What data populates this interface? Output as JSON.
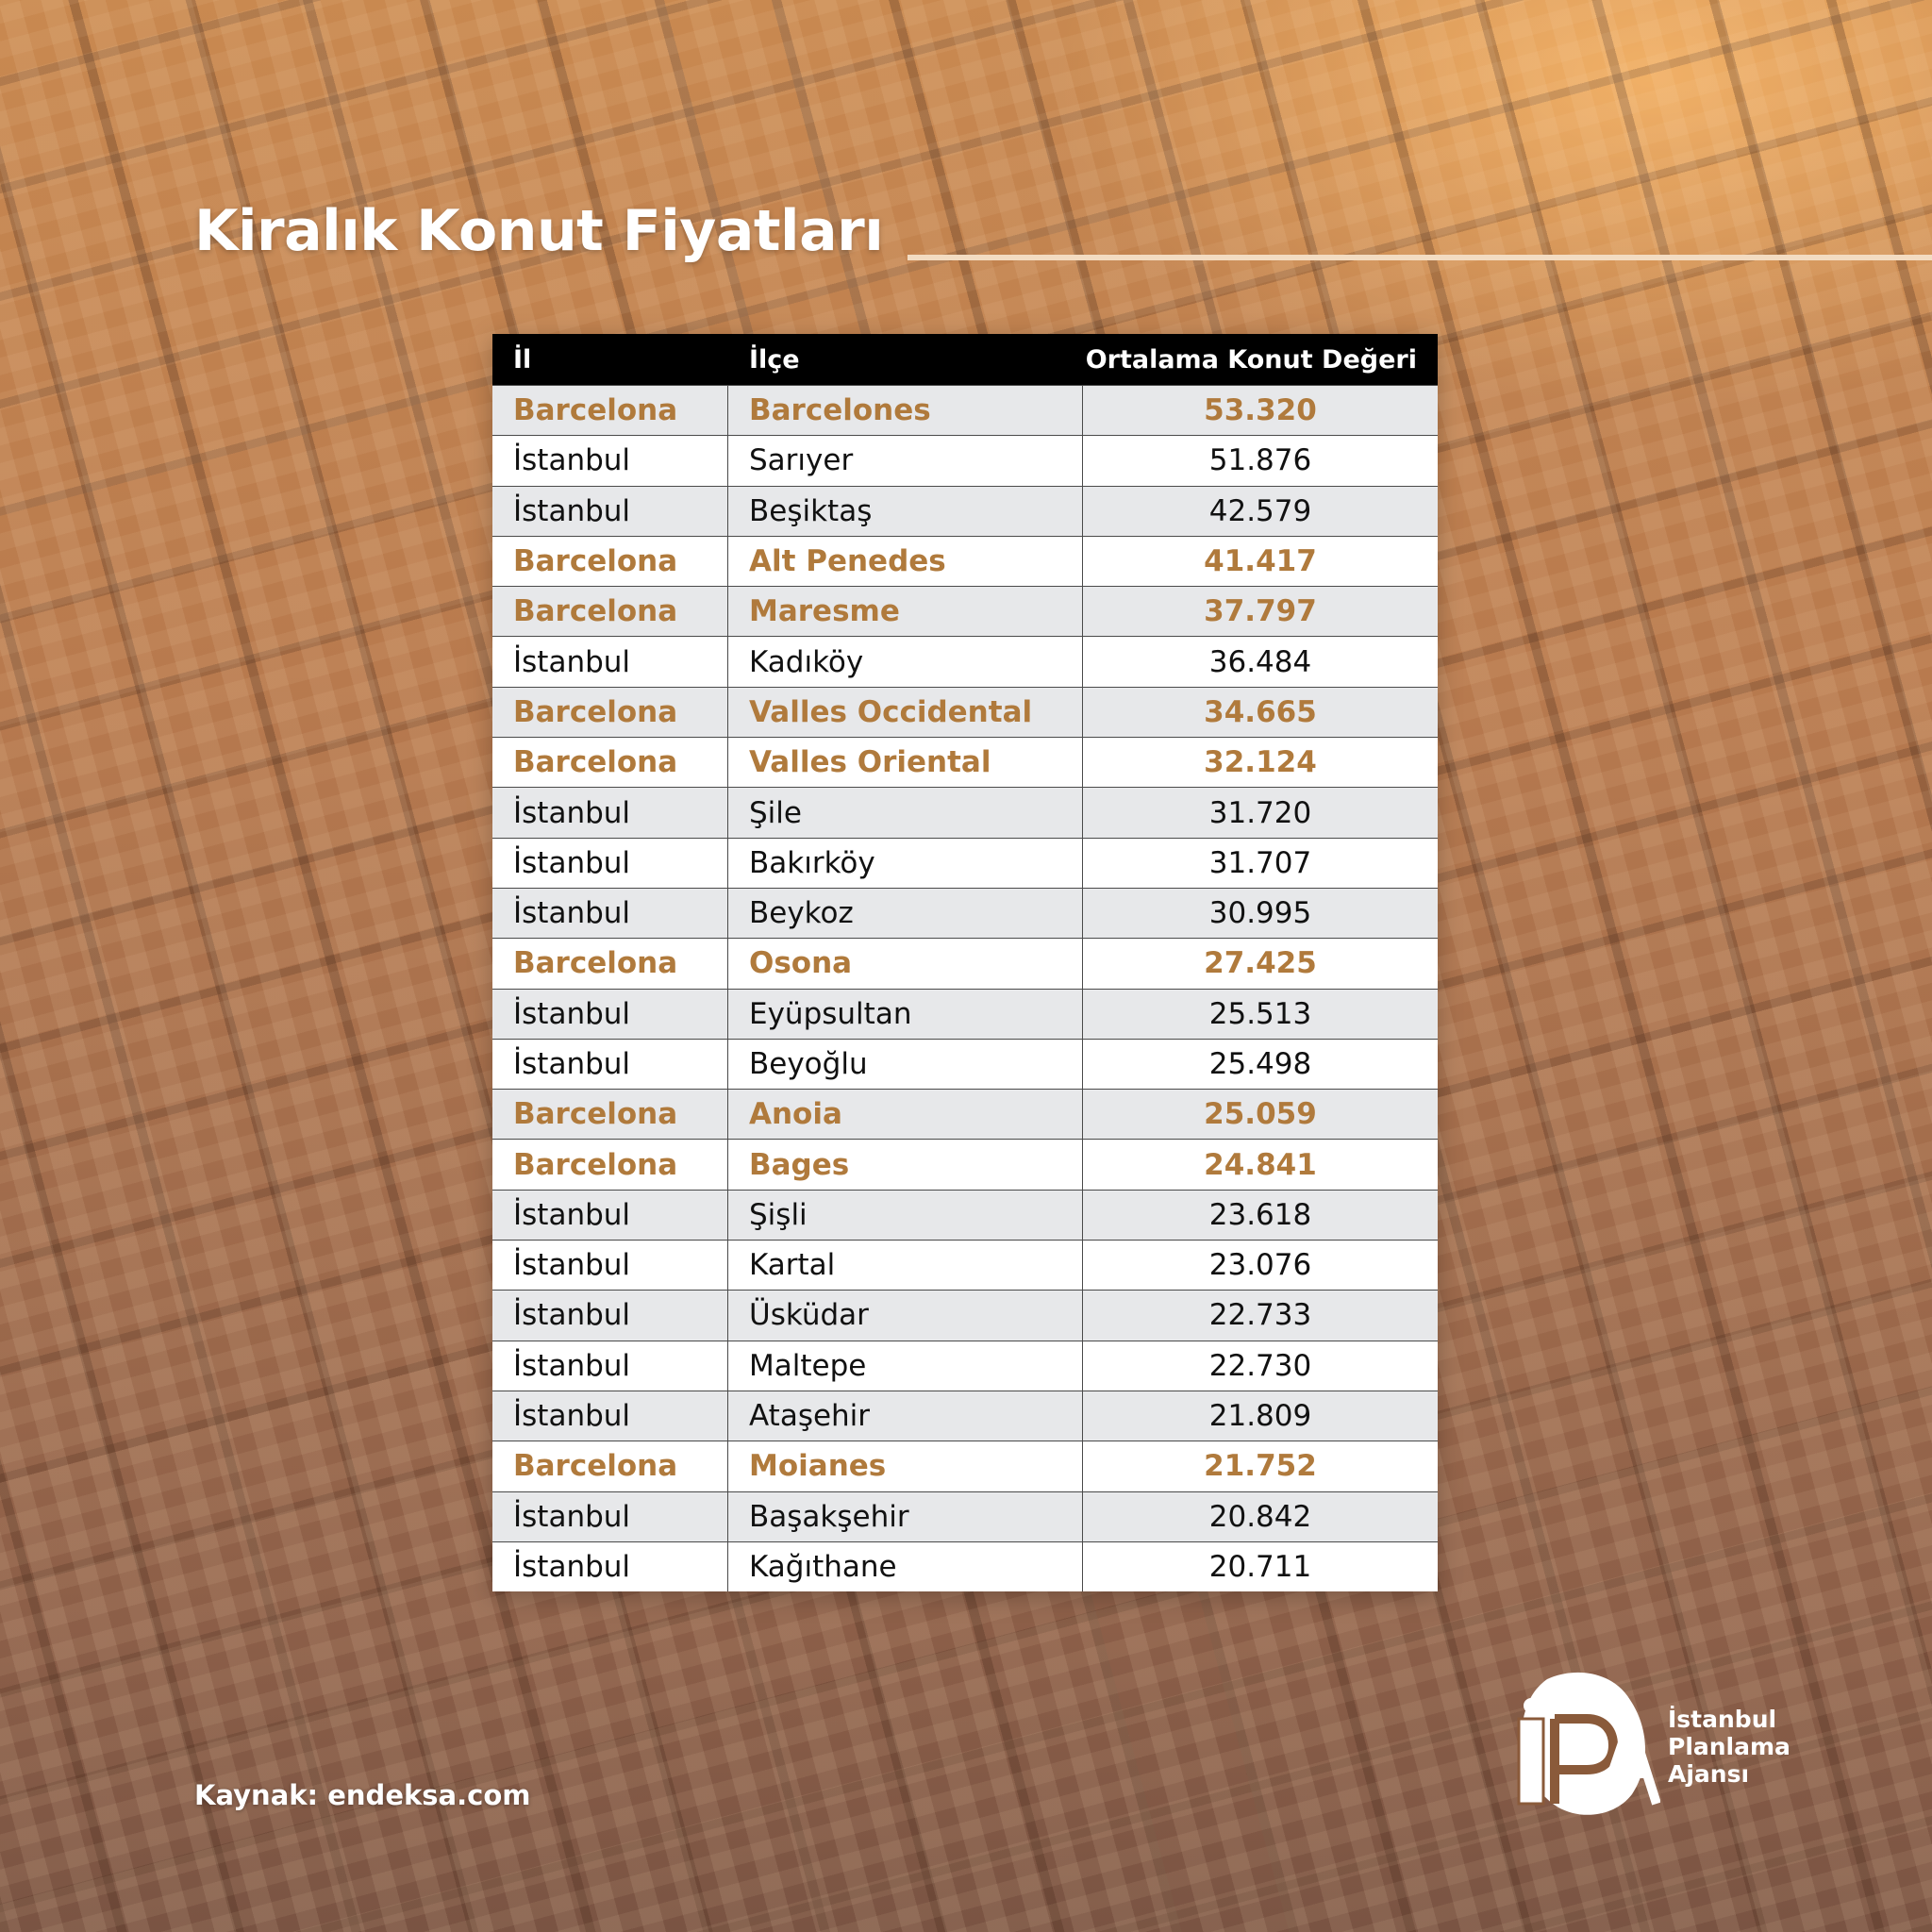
{
  "title": "Kiralık Konut Fiyatları",
  "table": {
    "headers": [
      "İl",
      "İlçe",
      "Ortalama Konut Değeri"
    ],
    "rows": [
      {
        "il": "Barcelona",
        "ilce": "Barcelones",
        "deger": "53.320",
        "highlight": true
      },
      {
        "il": "İstanbul",
        "ilce": "Sarıyer",
        "deger": "51.876",
        "highlight": false
      },
      {
        "il": "İstanbul",
        "ilce": "Beşiktaş",
        "deger": "42.579",
        "highlight": false
      },
      {
        "il": "Barcelona",
        "ilce": "Alt Penedes",
        "deger": "41.417",
        "highlight": true
      },
      {
        "il": "Barcelona",
        "ilce": "Maresme",
        "deger": "37.797",
        "highlight": true
      },
      {
        "il": "İstanbul",
        "ilce": "Kadıköy",
        "deger": "36.484",
        "highlight": false
      },
      {
        "il": "Barcelona",
        "ilce": "Valles Occidental",
        "deger": "34.665",
        "highlight": true
      },
      {
        "il": "Barcelona",
        "ilce": "Valles Oriental",
        "deger": "32.124",
        "highlight": true
      },
      {
        "il": "İstanbul",
        "ilce": "Şile",
        "deger": "31.720",
        "highlight": false
      },
      {
        "il": "İstanbul",
        "ilce": "Bakırköy",
        "deger": "31.707",
        "highlight": false
      },
      {
        "il": "İstanbul",
        "ilce": "Beykoz",
        "deger": "30.995",
        "highlight": false
      },
      {
        "il": "Barcelona",
        "ilce": "Osona",
        "deger": "27.425",
        "highlight": true
      },
      {
        "il": "İstanbul",
        "ilce": "Eyüpsultan",
        "deger": "25.513",
        "highlight": false
      },
      {
        "il": "İstanbul",
        "ilce": "Beyoğlu",
        "deger": "25.498",
        "highlight": false
      },
      {
        "il": "Barcelona",
        "ilce": "Anoia",
        "deger": "25.059",
        "highlight": true
      },
      {
        "il": "Barcelona",
        "ilce": "Bages",
        "deger": "24.841",
        "highlight": true
      },
      {
        "il": "İstanbul",
        "ilce": "Şişli",
        "deger": "23.618",
        "highlight": false
      },
      {
        "il": "İstanbul",
        "ilce": "Kartal",
        "deger": "23.076",
        "highlight": false
      },
      {
        "il": "İstanbul",
        "ilce": "Üsküdar",
        "deger": "22.733",
        "highlight": false
      },
      {
        "il": "İstanbul",
        "ilce": "Maltepe",
        "deger": "22.730",
        "highlight": false
      },
      {
        "il": "İstanbul",
        "ilce": "Ataşehir",
        "deger": "21.809",
        "highlight": false
      },
      {
        "il": "Barcelona",
        "ilce": "Moianes",
        "deger": "21.752",
        "highlight": true
      },
      {
        "il": "İstanbul",
        "ilce": "Başakşehir",
        "deger": "20.842",
        "highlight": false
      },
      {
        "il": "İstanbul",
        "ilce": "Kağıthane",
        "deger": "20.711",
        "highlight": false
      }
    ]
  },
  "source": "Kaynak: endeksa.com",
  "logo": {
    "icon": "ipa-logo-icon",
    "lines": [
      "İstanbul",
      "Planlama",
      "Ajansı"
    ]
  },
  "colors": {
    "highlight_text": "#b07a3c",
    "row_odd": "#e7e8ea",
    "row_even": "#ffffff",
    "header_bg": "#000000"
  }
}
